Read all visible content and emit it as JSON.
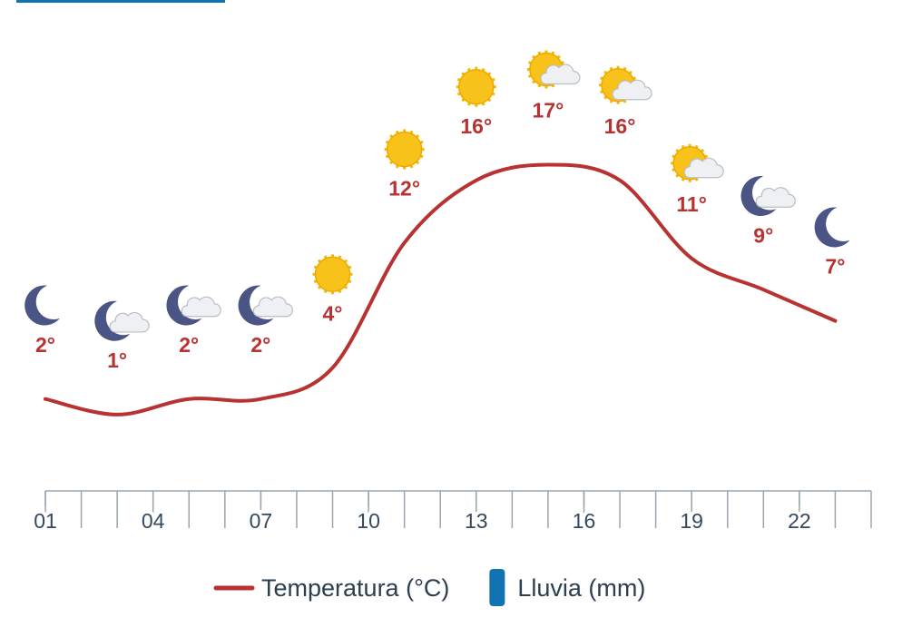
{
  "chart_data": {
    "type": "line",
    "x": [
      1,
      3,
      5,
      7,
      9,
      11,
      13,
      15,
      17,
      19,
      21,
      23
    ],
    "series": [
      {
        "name": "Temperatura (°C)",
        "color": "#b83232",
        "values": [
          2,
          1,
          2,
          2,
          4,
          12,
          16,
          17,
          16,
          11,
          9,
          7
        ],
        "value_labels": [
          "2°",
          "1°",
          "2°",
          "2°",
          "4°",
          "12°",
          "16°",
          "17°",
          "16°",
          "11°",
          "9°",
          "7°"
        ]
      },
      {
        "name": "Lluvia (mm)",
        "color": "#1273b3",
        "values": [
          null,
          null,
          null,
          null,
          null,
          null,
          null,
          null,
          null,
          null,
          null,
          null
        ]
      }
    ],
    "icons": [
      "moon",
      "moon-cloud",
      "moon-cloud",
      "moon-cloud",
      "sun",
      "sun",
      "sun",
      "sun-cloud",
      "sun-cloud",
      "sun-cloud",
      "moon-cloud",
      "moon"
    ],
    "xlim": [
      1,
      24
    ],
    "xticks": [
      {
        "value": 1,
        "label": "01"
      },
      {
        "value": 4,
        "label": "04"
      },
      {
        "value": 7,
        "label": "07"
      },
      {
        "value": 10,
        "label": "10"
      },
      {
        "value": 13,
        "label": "13"
      },
      {
        "value": 16,
        "label": "16"
      },
      {
        "value": 19,
        "label": "19"
      },
      {
        "value": 22,
        "label": "22"
      }
    ],
    "ylim": [
      -4,
      24
    ]
  }
}
